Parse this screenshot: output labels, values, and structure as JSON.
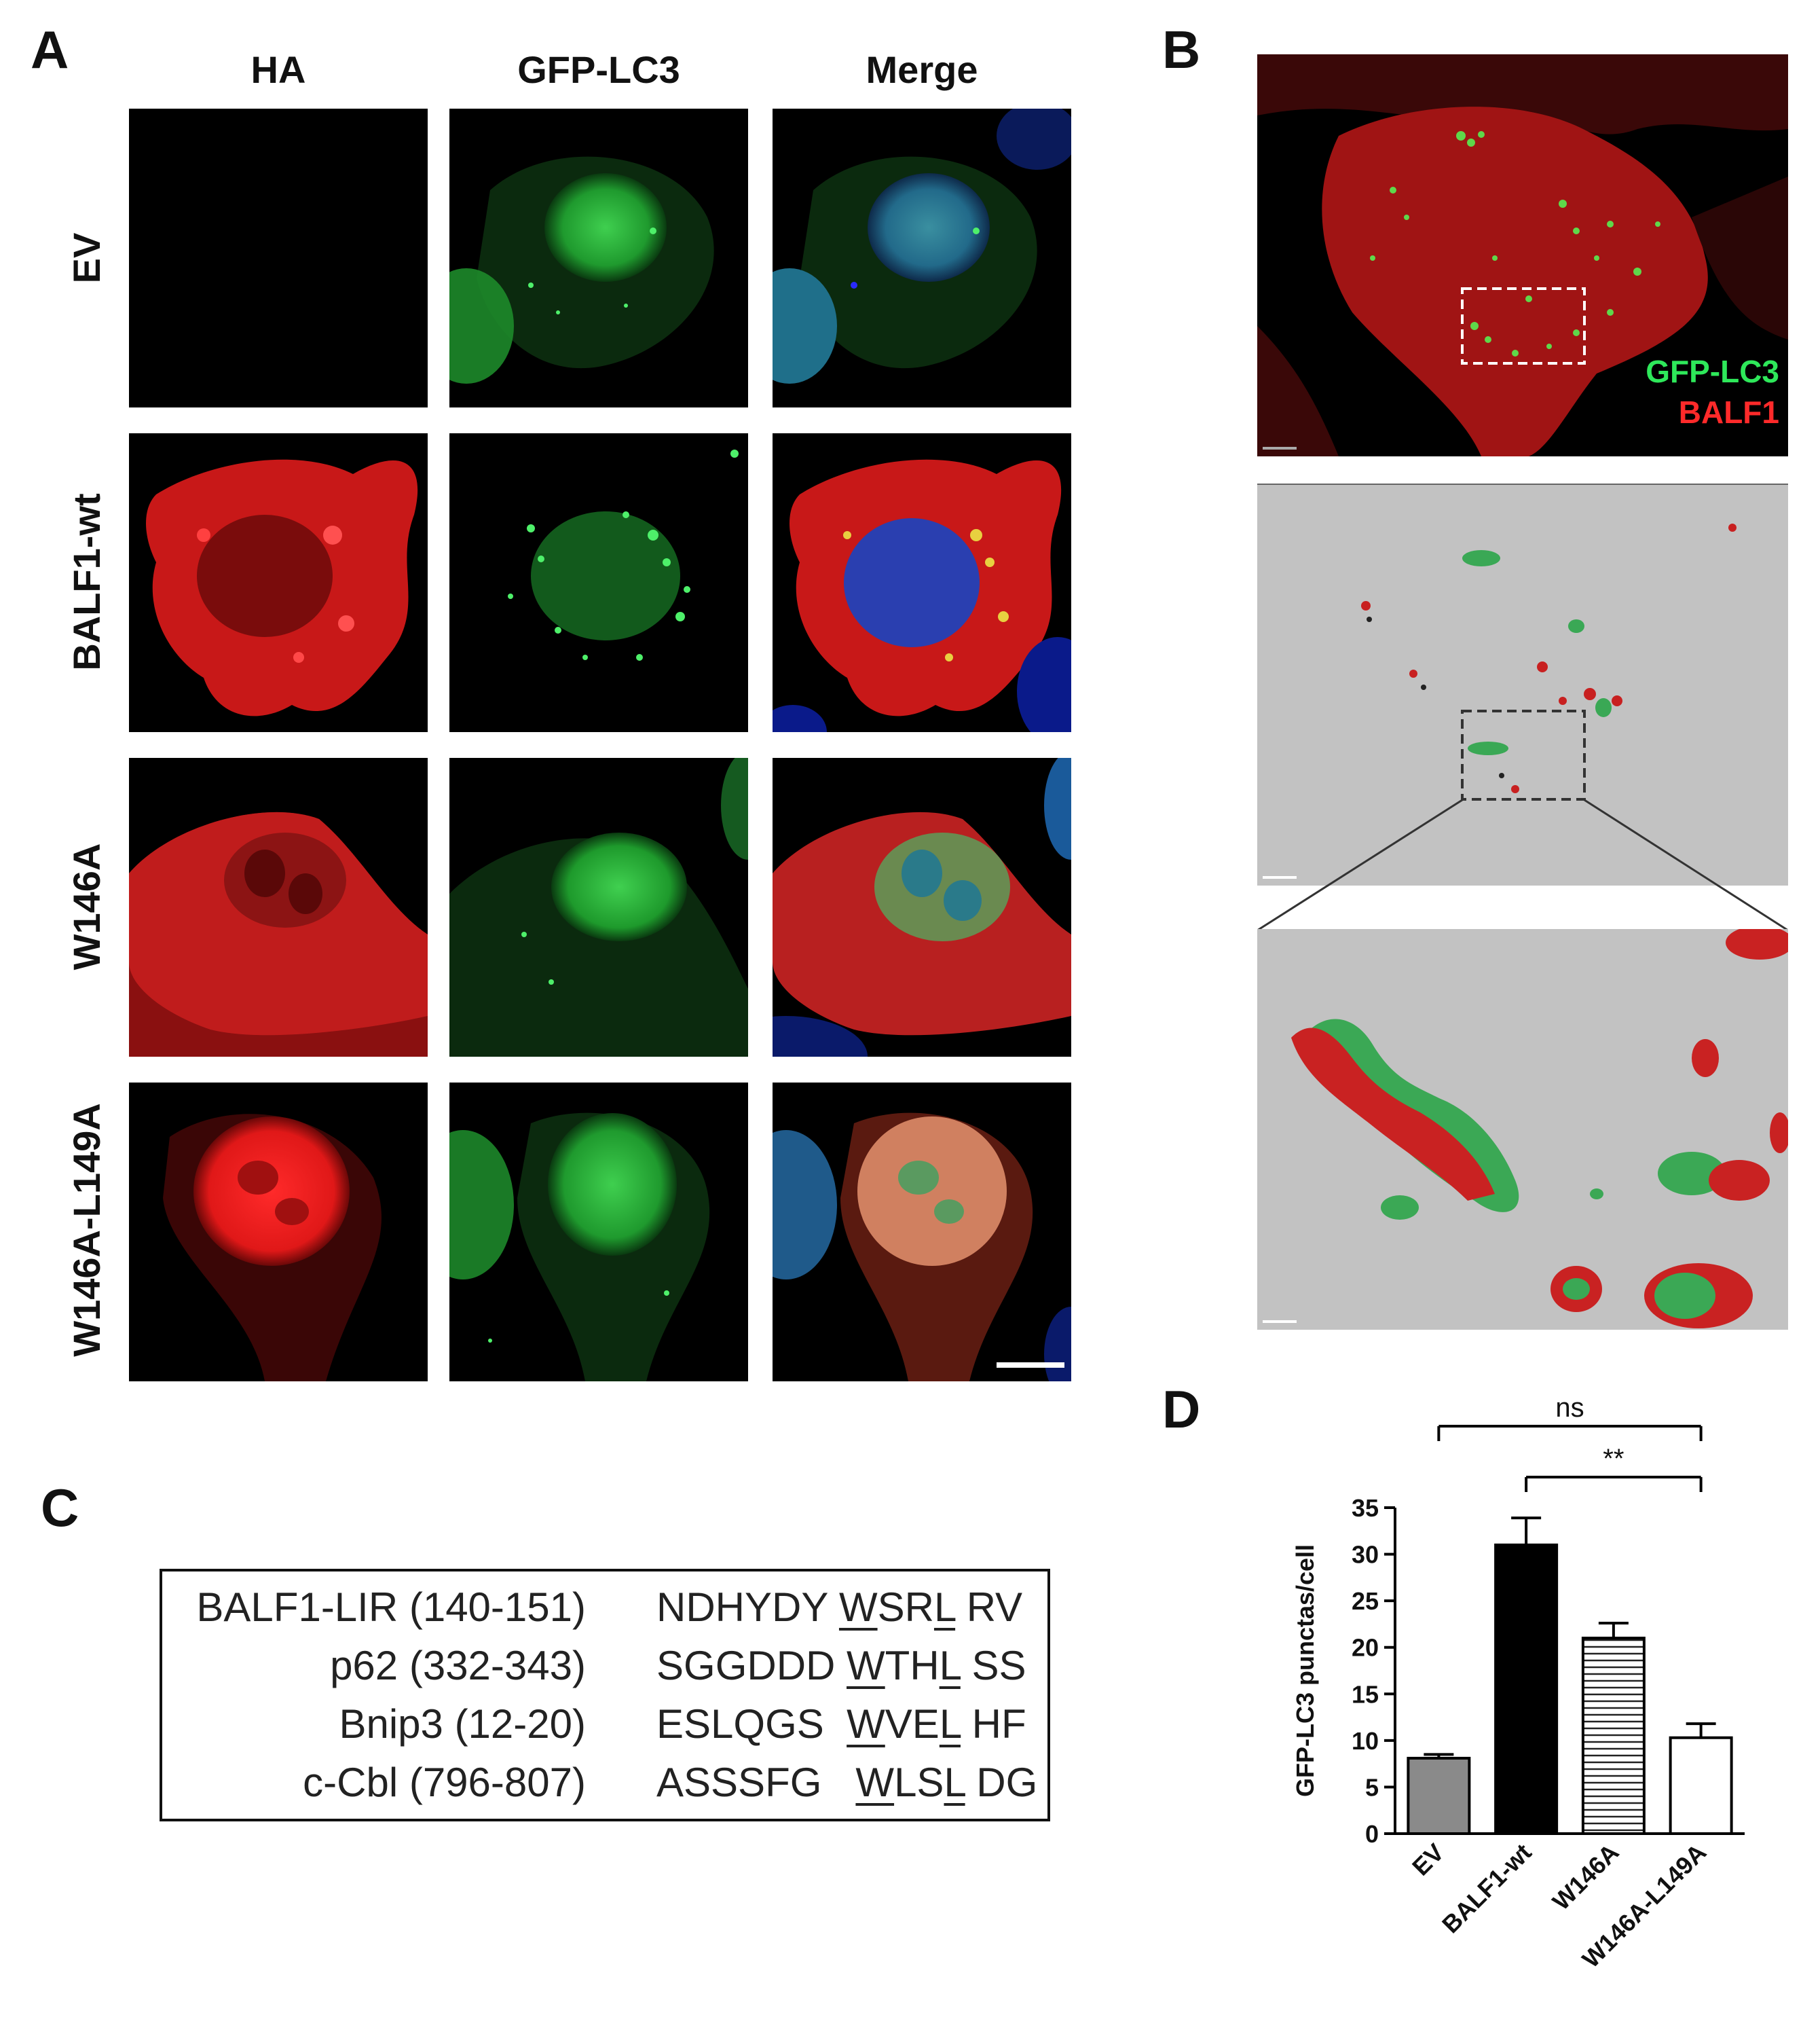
{
  "panels": {
    "a": "A",
    "b": "B",
    "c": "C",
    "d": "D"
  },
  "panel_a": {
    "columns": [
      "HA",
      "GFP-LC3",
      "Merge"
    ],
    "rows": [
      "EV",
      "BALF1-wt",
      "W146A",
      "W146A-L149A"
    ]
  },
  "panel_b": {
    "legend_gfp": "GFP-LC3",
    "legend_balf1": "BALF1",
    "colors": {
      "gfp": "#2ee85a",
      "balf1": "#ff2a2a",
      "render_bg": "#c2c2c2"
    }
  },
  "panel_c": {
    "rows": [
      {
        "name": "BALF1-LIR (140-151)",
        "pre": "NDHYDY",
        "w": "W",
        "mid": "SR",
        "l": "L",
        "post": "RV"
      },
      {
        "name": "p62 (332-343)",
        "pre": "SGGDDD",
        "w": "W",
        "mid": "TH",
        "l": "L",
        "post": "SS"
      },
      {
        "name": "Bnip3 (12-20)",
        "pre": "ESLQGS",
        "w": "W",
        "mid": "VE",
        "l": "L",
        "post": "HF"
      },
      {
        "name": "c-Cbl (796-807)",
        "pre": "ASSSFG",
        "w": "W",
        "mid": "LS",
        "l": "L",
        "post": "DG"
      }
    ]
  },
  "chart_data": {
    "type": "bar",
    "categories": [
      "EV",
      "BALF1-wt",
      "W146A",
      "W146A-L149A"
    ],
    "values": [
      8.1,
      31.0,
      21.0,
      10.3
    ],
    "errors": [
      0.4,
      2.9,
      1.6,
      1.5
    ],
    "fills": [
      "gray",
      "black",
      "horizontal-stripes",
      "white"
    ],
    "ylabel": "GFP-LC3 punctas/cell",
    "ylim": [
      0,
      35
    ],
    "yticks": [
      0,
      5,
      10,
      15,
      20,
      25,
      30,
      35
    ],
    "significance": [
      {
        "from": "EV",
        "to": "W146A-L149A",
        "label": "ns"
      },
      {
        "from": "BALF1-wt",
        "to": "W146A-L149A",
        "label": "**"
      }
    ]
  }
}
